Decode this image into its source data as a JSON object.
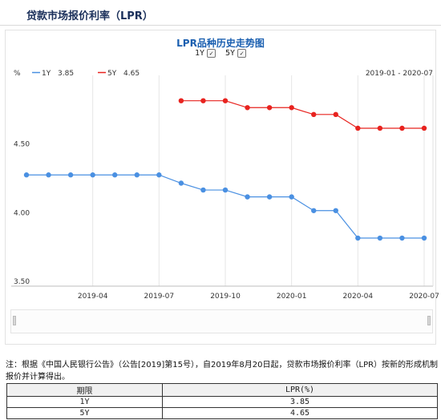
{
  "page": {
    "title": "贷款市场报价利率（LPR）"
  },
  "chart_data": {
    "type": "line",
    "title": "LPR品种历史走势图",
    "unit": "%",
    "date_range": "2019-01 - 2020-07",
    "x": [
      "2019-01",
      "2019-02",
      "2019-03",
      "2019-04",
      "2019-05",
      "2019-06",
      "2019-07",
      "2019-08",
      "2019-09",
      "2019-10",
      "2019-11",
      "2019-12",
      "2020-01",
      "2020-02",
      "2020-03",
      "2020-04",
      "2020-05",
      "2020-06",
      "2020-07"
    ],
    "x_ticks": [
      "2019-04",
      "2019-07",
      "2019-10",
      "2020-01",
      "2020-04",
      "2020-07"
    ],
    "y_ticks": [
      "3.50",
      "4.00",
      "4.50"
    ],
    "ylim": [
      3.5,
      5.0
    ],
    "grid": "vertical",
    "legend_position": "top-left",
    "series": [
      {
        "name": "1Y",
        "legend_value": "3.85",
        "color": "#4a90e2",
        "values": [
          4.31,
          4.31,
          4.31,
          4.31,
          4.31,
          4.31,
          4.31,
          4.25,
          4.2,
          4.2,
          4.15,
          4.15,
          4.15,
          4.05,
          4.05,
          3.85,
          3.85,
          3.85,
          3.85
        ]
      },
      {
        "name": "5Y",
        "legend_value": "4.65",
        "color": "#e8231f",
        "values": [
          null,
          null,
          null,
          null,
          null,
          null,
          null,
          4.85,
          4.85,
          4.85,
          4.8,
          4.8,
          4.8,
          4.75,
          4.75,
          4.65,
          4.65,
          4.65,
          4.65
        ]
      }
    ]
  },
  "toggles": {
    "y1_label": "1Y",
    "y5_label": "5Y",
    "check_glyph": "✓"
  },
  "note": "注：根据《中国人民银行公告》（公告[2019]第15号），自2019年8月20日起，贷款市场报价利率（LPR）按新的形成机制报价并计算得出。",
  "table": {
    "headers": [
      "期限",
      "LPR(%)"
    ],
    "rows": [
      [
        "1Y",
        "3.85"
      ],
      [
        "5Y",
        "4.65"
      ]
    ]
  }
}
